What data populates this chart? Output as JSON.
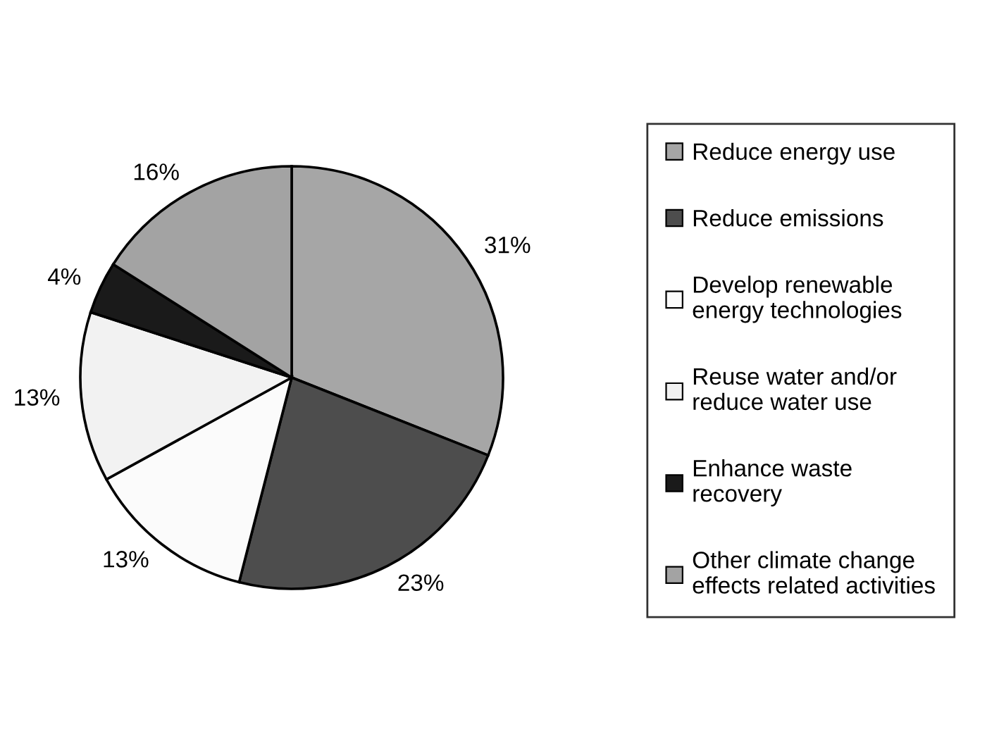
{
  "chart_data": {
    "type": "pie",
    "categories": [
      "Reduce energy use",
      "Reduce emissions",
      "Develop renewable\nenergy technologies",
      "Reuse water and/or\nreduce water use",
      "Enhance waste\nrecovery",
      "Other climate change\neffects related activities"
    ],
    "values": [
      31,
      23,
      13,
      13,
      4,
      16
    ],
    "value_labels": [
      "31%",
      "23%",
      "13%",
      "13%",
      "4%",
      "16%"
    ],
    "colors": [
      "#a6a6a6",
      "#4d4d4d",
      "#fbfbfb",
      "#f2f2f2",
      "#1a1a1a",
      "#a3a3a3"
    ],
    "legend": "right"
  }
}
